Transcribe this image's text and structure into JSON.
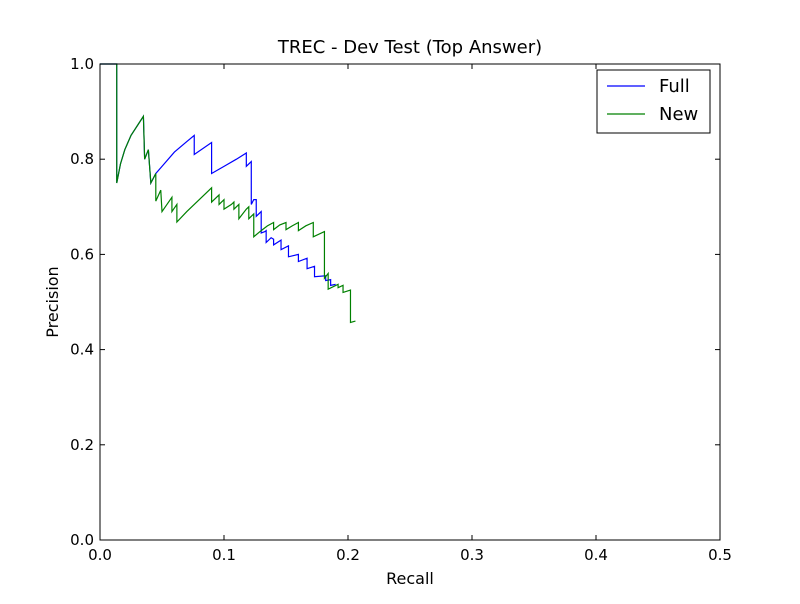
{
  "chart_data": {
    "type": "line",
    "title": "TREC - Dev Test (Top Answer)",
    "xlabel": "Recall",
    "ylabel": "Precision",
    "xlim": [
      0.0,
      0.5
    ],
    "ylim": [
      0.0,
      1.0
    ],
    "xticks": [
      0.0,
      0.1,
      0.2,
      0.3,
      0.4,
      0.5
    ],
    "xtick_labels": [
      "0.0",
      "0.1",
      "0.2",
      "0.3",
      "0.4",
      "0.5"
    ],
    "yticks": [
      0.0,
      0.2,
      0.4,
      0.6,
      0.8,
      1.0
    ],
    "ytick_labels": [
      "0.0",
      "0.2",
      "0.4",
      "0.6",
      "0.8",
      "1.0"
    ],
    "grid": false,
    "legend_position": "top-right",
    "series": [
      {
        "name": "Full",
        "color": "#0000ff",
        "points": [
          [
            0.0,
            1.0
          ],
          [
            0.0135,
            1.0
          ],
          [
            0.0135,
            0.75
          ],
          [
            0.0165,
            0.79
          ],
          [
            0.02,
            0.82
          ],
          [
            0.025,
            0.85
          ],
          [
            0.03,
            0.87
          ],
          [
            0.035,
            0.89
          ],
          [
            0.036,
            0.8
          ],
          [
            0.039,
            0.82
          ],
          [
            0.041,
            0.75
          ],
          [
            0.045,
            0.77
          ],
          [
            0.05,
            0.785
          ],
          [
            0.06,
            0.815
          ],
          [
            0.07,
            0.837
          ],
          [
            0.076,
            0.85
          ],
          [
            0.076,
            0.81
          ],
          [
            0.09,
            0.835
          ],
          [
            0.09,
            0.77
          ],
          [
            0.1,
            0.785
          ],
          [
            0.11,
            0.8
          ],
          [
            0.118,
            0.813
          ],
          [
            0.118,
            0.785
          ],
          [
            0.122,
            0.795
          ],
          [
            0.122,
            0.705
          ],
          [
            0.124,
            0.715
          ],
          [
            0.126,
            0.715
          ],
          [
            0.126,
            0.68
          ],
          [
            0.13,
            0.69
          ],
          [
            0.13,
            0.645
          ],
          [
            0.133,
            0.648
          ],
          [
            0.134,
            0.65
          ],
          [
            0.134,
            0.625
          ],
          [
            0.138,
            0.635
          ],
          [
            0.14,
            0.632
          ],
          [
            0.14,
            0.62
          ],
          [
            0.146,
            0.63
          ],
          [
            0.146,
            0.61
          ],
          [
            0.152,
            0.618
          ],
          [
            0.152,
            0.595
          ],
          [
            0.16,
            0.6
          ],
          [
            0.16,
            0.585
          ],
          [
            0.167,
            0.592
          ],
          [
            0.167,
            0.57
          ],
          [
            0.173,
            0.575
          ],
          [
            0.173,
            0.553
          ],
          [
            0.182,
            0.555
          ],
          [
            0.182,
            0.545
          ],
          [
            0.186,
            0.547
          ],
          [
            0.186,
            0.535
          ],
          [
            0.19,
            0.537
          ]
        ]
      },
      {
        "name": "New",
        "color": "#008000",
        "points": [
          [
            0.0,
            1.0
          ],
          [
            0.0135,
            1.0
          ],
          [
            0.0135,
            0.75
          ],
          [
            0.0165,
            0.79
          ],
          [
            0.02,
            0.82
          ],
          [
            0.025,
            0.85
          ],
          [
            0.03,
            0.87
          ],
          [
            0.035,
            0.89
          ],
          [
            0.036,
            0.8
          ],
          [
            0.039,
            0.82
          ],
          [
            0.041,
            0.75
          ],
          [
            0.045,
            0.77
          ],
          [
            0.045,
            0.712
          ],
          [
            0.049,
            0.735
          ],
          [
            0.05,
            0.69
          ],
          [
            0.054,
            0.705
          ],
          [
            0.058,
            0.72
          ],
          [
            0.058,
            0.69
          ],
          [
            0.062,
            0.705
          ],
          [
            0.062,
            0.668
          ],
          [
            0.07,
            0.69
          ],
          [
            0.08,
            0.715
          ],
          [
            0.09,
            0.74
          ],
          [
            0.09,
            0.71
          ],
          [
            0.096,
            0.725
          ],
          [
            0.096,
            0.705
          ],
          [
            0.1,
            0.715
          ],
          [
            0.1,
            0.695
          ],
          [
            0.106,
            0.705
          ],
          [
            0.108,
            0.71
          ],
          [
            0.108,
            0.695
          ],
          [
            0.112,
            0.705
          ],
          [
            0.112,
            0.675
          ],
          [
            0.118,
            0.695
          ],
          [
            0.12,
            0.7
          ],
          [
            0.12,
            0.675
          ],
          [
            0.124,
            0.685
          ],
          [
            0.124,
            0.637
          ],
          [
            0.13,
            0.65
          ],
          [
            0.135,
            0.66
          ],
          [
            0.14,
            0.667
          ],
          [
            0.14,
            0.652
          ],
          [
            0.145,
            0.662
          ],
          [
            0.15,
            0.667
          ],
          [
            0.15,
            0.652
          ],
          [
            0.155,
            0.66
          ],
          [
            0.16,
            0.667
          ],
          [
            0.16,
            0.65
          ],
          [
            0.166,
            0.66
          ],
          [
            0.172,
            0.667
          ],
          [
            0.172,
            0.637
          ],
          [
            0.181,
            0.648
          ],
          [
            0.181,
            0.55
          ],
          [
            0.184,
            0.56
          ],
          [
            0.184,
            0.527
          ],
          [
            0.192,
            0.537
          ],
          [
            0.192,
            0.53
          ],
          [
            0.196,
            0.535
          ],
          [
            0.196,
            0.52
          ],
          [
            0.202,
            0.525
          ],
          [
            0.202,
            0.457
          ],
          [
            0.206,
            0.46
          ]
        ]
      }
    ]
  }
}
